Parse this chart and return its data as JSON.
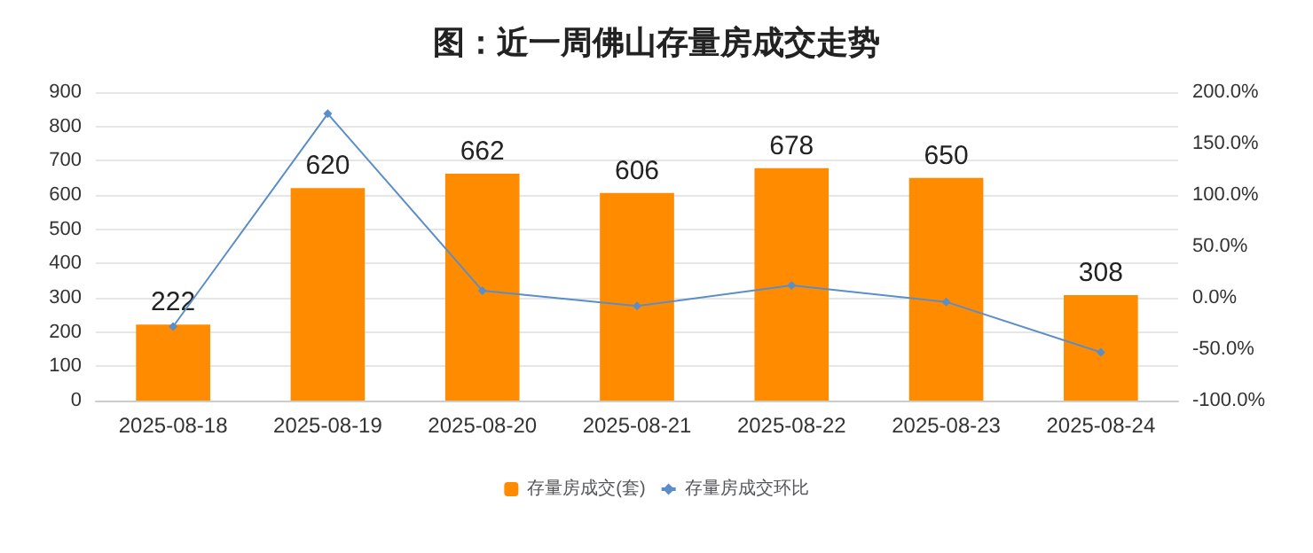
{
  "chart_data": {
    "type": "bar",
    "title": "图：近一周佛山存量房成交走势",
    "categories": [
      "2025-08-18",
      "2025-08-19",
      "2025-08-20",
      "2025-08-21",
      "2025-08-22",
      "2025-08-23",
      "2025-08-24"
    ],
    "series": [
      {
        "name": "存量房成交(套)",
        "color": "#ff8c00",
        "values": [
          222,
          620,
          662,
          606,
          678,
          650,
          308
        ],
        "value_labels": [
          "222",
          "620",
          "662",
          "606",
          "678",
          "650",
          "308"
        ]
      },
      {
        "name": "存量房成交环比",
        "type": "line",
        "axis": "y2",
        "color": "#5b8ec9",
        "values": [
          -28,
          179,
          7,
          -8,
          12,
          -4,
          -53
        ]
      }
    ],
    "ylim": [
      0,
      900
    ],
    "yticks": [
      0,
      100,
      200,
      300,
      400,
      500,
      600,
      700,
      800,
      900
    ],
    "y2lim": [
      -100,
      200
    ],
    "y2ticks": [
      {
        "value": -100,
        "label": "-100.0%"
      },
      {
        "value": -50,
        "label": "-50.0%"
      },
      {
        "value": 0,
        "label": "0.0%"
      },
      {
        "value": 50,
        "label": "50.0%"
      },
      {
        "value": 100,
        "label": "100.0%"
      },
      {
        "value": 150,
        "label": "150.0%"
      },
      {
        "value": 200,
        "label": "200.0%"
      }
    ],
    "grid": "y",
    "legend": "bottom",
    "marker": "diamond"
  }
}
